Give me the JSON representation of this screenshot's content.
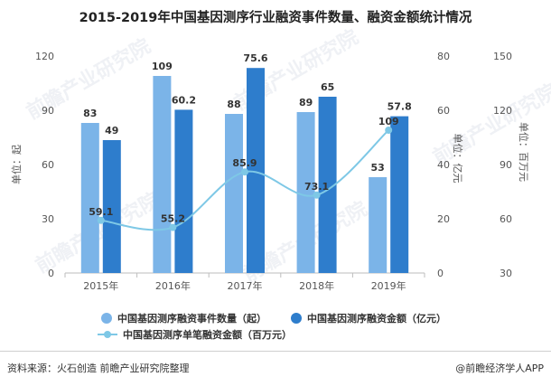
{
  "title": "2015-2019年中国基因测序行业融资事件数量、融资金额统计情况",
  "footer": {
    "source": "资料来源：火石创造 前瞻产业研究院整理",
    "brand": "@前瞻经济学人APP"
  },
  "watermark": "前瞻产业研究院",
  "colors": {
    "count_bar": "#7bb4e8",
    "amount_bar": "#2e7dcc",
    "line": "#7ec8e6"
  },
  "chart_data": {
    "type": "bar",
    "categories": [
      "2015年",
      "2016年",
      "2017年",
      "2018年",
      "2019年"
    ],
    "series": [
      {
        "name": "中国基因测序融资事件数量（起）",
        "type": "bar",
        "axis": "left",
        "values": [
          83,
          109,
          88,
          89,
          53
        ]
      },
      {
        "name": "中国基因测序融资金额（亿元）",
        "type": "bar",
        "axis": "right1",
        "values": [
          49,
          60.2,
          75.6,
          65,
          57.8
        ]
      },
      {
        "name": "中国基因测序单笔融资金额（百万元）",
        "type": "line",
        "axis": "right2",
        "values": [
          59.1,
          55.2,
          85.9,
          73.1,
          109
        ]
      }
    ],
    "axes": {
      "left": {
        "label": "单位：起",
        "min": 0,
        "max": 120,
        "ticks": [
          0,
          30,
          60,
          90,
          120
        ]
      },
      "right1": {
        "label": "单位：亿元",
        "min": 0,
        "max": 80,
        "ticks": [
          0,
          20,
          40,
          60,
          80
        ]
      },
      "right2": {
        "label": "单位：百万元",
        "min": 30,
        "max": 150,
        "ticks": [
          30,
          60,
          90,
          120,
          150
        ]
      }
    },
    "grid": false,
    "legend": "bottom"
  }
}
